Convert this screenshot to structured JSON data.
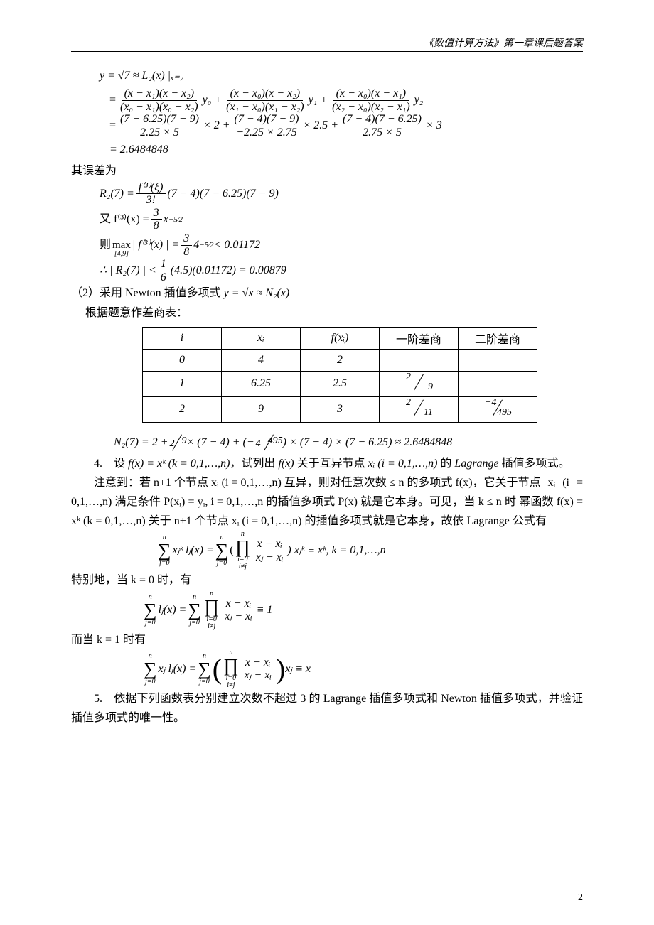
{
  "header": "《数值计算方法》第一章课后题答案",
  "eq1": {
    "l1": "y = √7 ≈ L₂(x) |ₓ₌₇",
    "l2a_num": "(x − x₁)(x − x₂)",
    "l2a_den": "(x₀ − x₁)(x₀ − x₂)",
    "l2a_tail": " y₀ + ",
    "l2b_num": "(x − x₀)(x − x₂)",
    "l2b_den": "(x₁ − x₀)(x₁ − x₂)",
    "l2b_tail": " y₁ + ",
    "l2c_num": "(x − x₀)(x − x₁)",
    "l2c_den": "(x₂ − x₀)(x₂ − x₁)",
    "l2c_tail": " y₂",
    "l3a_num": "(7 − 6.25)(7 − 9)",
    "l3a_den": "2.25 × 5",
    "l3a_tail": " × 2 + ",
    "l3b_num": "(7 − 4)(7 − 9)",
    "l3b_den": "−2.25 × 2.75",
    "l3b_tail": " × 2.5 + ",
    "l3c_num": "(7 − 4)(7 − 6.25)",
    "l3c_den": "2.75 × 5",
    "l3c_tail": " × 3",
    "l4": "= 2.6484848"
  },
  "errlabel": "其误差为",
  "err": {
    "r1_lhs": "R₂(7) = ",
    "r1_num": "f⁽³⁾(ξ)",
    "r1_den": "3!",
    "r1_tail": "(7 − 4)(7 − 6.25)(7 − 9)",
    "r2_pre": "又 f⁽³⁾(x) = ",
    "r2_num": "3",
    "r2_den": "8",
    "r2_tail": " x",
    "r2_exp": "−5⁄2",
    "r3_pre": "则 ",
    "r3_max": "max",
    "r3_maxsub": "[4,9]",
    "r3_mid": " | f⁽³⁾(x) | = ",
    "r3_num": "3",
    "r3_den": "8",
    "r3_tail1": " 4",
    "r3_exp": "−5⁄2",
    "r3_tail2": " < 0.01172",
    "r4_pre": "∴ | R₂(7) | < ",
    "r4_num": "1",
    "r4_den": "6",
    "r4_tail": "(4.5)(0.01172) = 0.00879"
  },
  "part2_intro": "（2）采用 Newton 插值多项式 y = √x ≈ N₂(x)",
  "part2_sub": "根据题意作差商表：",
  "table": {
    "head": [
      "i",
      "xᵢ",
      "f(xᵢ)",
      "一阶差商",
      "二阶差商"
    ],
    "rows": [
      [
        "0",
        "4",
        "2",
        "",
        ""
      ],
      [
        "1",
        "6.25",
        "2.5",
        {
          "n": "2",
          "d": "9"
        },
        ""
      ],
      [
        "2",
        "9",
        "3",
        {
          "n": "2",
          "d": "11"
        },
        {
          "n": "−4",
          "d": "495"
        }
      ]
    ]
  },
  "n2line": "N₂(7) = 2 + 2⁄9 × (7 − 4) + (−4⁄495) × (7 − 4) × (7 − 6.25) ≈ 2.6484848",
  "q4_line1": "4.　设 f(x) = xᵏ (k = 0,1,…,n)，试列出 f(x) 关于互异节点 xᵢ (i = 0,1,…,n) 的 Lagrange 插值多项式。",
  "q4_p1": "注意到：若 n+1 个节点 xᵢ (i = 0,1,…,n) 互异，则对任意次数 ≤ n 的多项式 f(x)，它关于节点",
  "q4_p2": "xᵢ (i = 0,1,…,n) 满足条件 P(xᵢ) = yᵢ, i = 0,1,…,n 的插值多项式 P(x) 就是它本身。可见，当 k ≤ n 时",
  "q4_p3": "幂函数 f(x) = xᵏ (k = 0,1,…,n) 关于 n+1 个节点 xᵢ (i = 0,1,…,n) 的插值多项式就是它本身，故依",
  "q4_p4": "Lagrange 公式有",
  "sumeq1": {
    "sum_top": "n",
    "sum_bot": "j=0",
    "term": "xⱼᵏ lⱼ(x) = ",
    "prod_top": "n",
    "prod_bot1": "i=0",
    "prod_bot2": "i≠j",
    "frac_num": "x − xᵢ",
    "frac_den": "xⱼ − xᵢ",
    "tail": ") xⱼᵏ ≡ xᵏ,  k = 0,1,…,n"
  },
  "q4_sp0": "特别地，当 k = 0 时，有",
  "sumeq2": {
    "term": "lⱼ(x) = ",
    "tail": " ≡ 1"
  },
  "q4_sp1": "而当 k = 1 时有",
  "sumeq3": {
    "term": "xⱼ lⱼ(x) = ",
    "tail": " xⱼ ≡ x"
  },
  "q5": "5.　依据下列函数表分别建立次数不超过 3 的 Lagrange 插值多项式和 Newton 插值多项式，并验证插值多项式的唯一性。",
  "pagenum": "2"
}
